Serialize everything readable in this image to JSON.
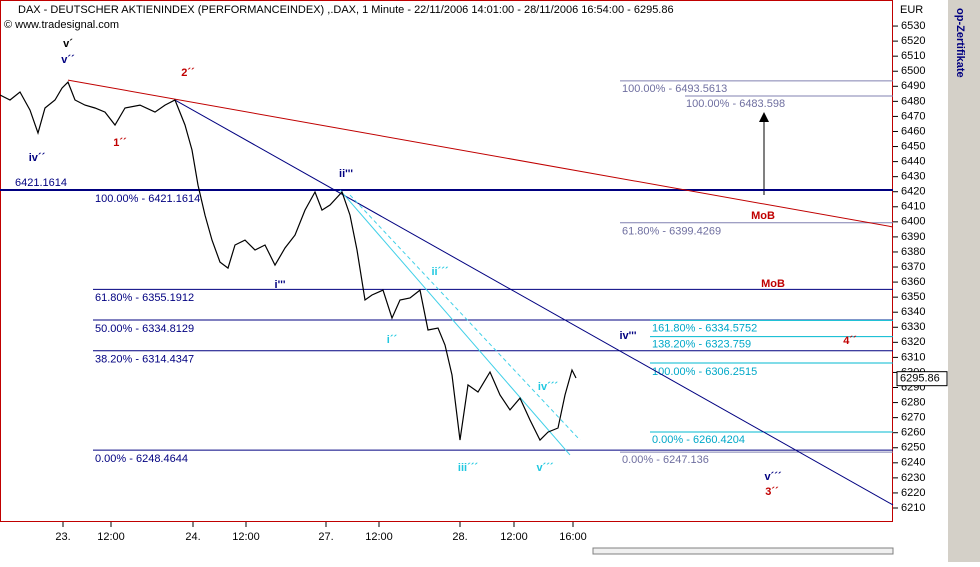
{
  "chart_data": {
    "type": "line",
    "title": "DAX - DEUTSCHER AKTIENINDEX (PERFORMANCEINDEX) ,.DAX, 1 Minute - 22/11/2006 14:01:00 - 28/11/2006 16:54:00 - 6295.86",
    "source": "© www.tradesignal.com",
    "currency": "EUR",
    "side_tab": "op-Zertifikate",
    "color": "#000000",
    "x": [
      -252,
      -212,
      -172,
      -132,
      -100,
      -72,
      -32,
      -4,
      20,
      48,
      88,
      128,
      168,
      208,
      248,
      308,
      368,
      408,
      448,
      488,
      516,
      540,
      568,
      596,
      628,
      660,
      688,
      728,
      768,
      808,
      848,
      888,
      928,
      968,
      1008,
      1036,
      1068,
      1116,
      1148,
      1176,
      1208,
      1236,
      1280,
      1316,
      1348,
      1388,
      1428,
      1460,
      1500,
      1528,
      1556,
      1588,
      1620,
      1660,
      1708,
      1748,
      1788,
      1828,
      1868,
      1908,
      1940,
      1980,
      2008,
      2036,
      2052
    ],
    "values": [
      6484.2,
      6480.9,
      6486.2,
      6474.2,
      6459,
      6475.6,
      6480.9,
      6488.8,
      6492.8,
      6480.9,
      6477.5,
      6475.6,
      6472.9,
      6464.3,
      6475.6,
      6477.5,
      6472.9,
      6477.5,
      6480.9,
      6464.3,
      6447.7,
      6424.4,
      6404.5,
      6387.9,
      6373.3,
      6369.3,
      6384.6,
      6387.9,
      6381.3,
      6384.6,
      6371.3,
      6382.6,
      6391.2,
      6407.8,
      6419.8,
      6407.8,
      6411.2,
      6419.8,
      6404.5,
      6381.3,
      6348.1,
      6351.4,
      6354.7,
      6336.1,
      6348.1,
      6349.4,
      6354.7,
      6328.2,
      6329.5,
      6318.2,
      6298.3,
      6255.1,
      6291.7,
      6287,
      6300.3,
      6285,
      6275.1,
      6283,
      6268.4,
      6255.1,
      6260.4,
      6263.1,
      6285,
      6301.6,
      6296.3
    ],
    "last_price": 6295.86,
    "xlim": [
      -252,
      3320
    ],
    "ylim": [
      6200.7,
      6547.3
    ],
    "xticks": [
      {
        "value": 0,
        "label": "23."
      },
      {
        "value": 192,
        "label": "12:00"
      },
      {
        "value": 520,
        "label": "24."
      },
      {
        "value": 732,
        "label": "12:00"
      },
      {
        "value": 1052,
        "label": "27."
      },
      {
        "value": 1264,
        "label": "12:00"
      },
      {
        "value": 1588,
        "label": "28."
      },
      {
        "value": 1804,
        "label": "12:00"
      },
      {
        "value": 2040,
        "label": "16:00"
      }
    ],
    "yticks": [
      6210,
      6220,
      6230,
      6240,
      6250,
      6260,
      6270,
      6280,
      6290,
      6300,
      6310,
      6320,
      6330,
      6340,
      6350,
      6360,
      6370,
      6380,
      6390,
      6400,
      6410,
      6420,
      6430,
      6440,
      6450,
      6460,
      6470,
      6480,
      6490,
      6500,
      6510,
      6520,
      6530
    ],
    "levels": [
      {
        "value": 6421.1614,
        "label": "100.00% - 6421.1614",
        "side_label": "6421.1614",
        "color": "#000080"
      },
      {
        "value": 6355.1912,
        "label": "61.80% - 6355.1912",
        "color": "#000080"
      },
      {
        "value": 6334.8129,
        "label": "50.00% - 6334.8129",
        "color": "#000080"
      },
      {
        "value": 6314.4347,
        "label": "38.20% - 6314.4347",
        "color": "#000080"
      },
      {
        "value": 6248.4644,
        "label": "0.00% - 6248.4644",
        "color": "#000080"
      },
      {
        "value": 6493.5613,
        "label": "100.00% - 6493.5613",
        "color": "#8080b0"
      },
      {
        "value": 6483.598,
        "label": "100.00% - 6483.598",
        "color": "#8080b0"
      },
      {
        "value": 6399.4269,
        "label": "61.80% - 6399.4269",
        "color": "#8080b0"
      },
      {
        "value": 6334.5752,
        "label": "161.80% - 6334.5752",
        "color": "#00b8d0"
      },
      {
        "value": 6323.759,
        "label": "138.20% - 6323.759",
        "color": "#00b8d0"
      },
      {
        "value": 6306.2515,
        "label": "100.00% - 6306.2515",
        "color": "#00b8d0"
      },
      {
        "value": 6260.4204,
        "label": "0.00% - 6260.4204",
        "color": "#00b8d0"
      },
      {
        "value": 6247.136,
        "label": "0.00% - 6247.136",
        "color": "#8080b0"
      }
    ],
    "trendlines": [
      {
        "x": [
          20,
          3320
        ],
        "y": [
          6494.1,
          6396.6
        ],
        "color": "#c00000"
      },
      {
        "x": [
          448,
          3320
        ],
        "y": [
          6480.9,
          6212.0
        ],
        "color": "#000080"
      },
      {
        "x": [
          1108,
          2028
        ],
        "y": [
          6421.1,
          6245.2
        ],
        "color": "#40d0e8"
      },
      {
        "x": [
          1148,
          2068
        ],
        "y": [
          6417.8,
          6255.1
        ],
        "color": "#40d0e8"
      }
    ],
    "annotations": [
      {
        "text": "v´",
        "color": "#000000"
      },
      {
        "text": "v´´",
        "color": "#000080"
      },
      {
        "text": "iv´´",
        "color": "#000080"
      },
      {
        "text": "2´´",
        "color": "#c00000"
      },
      {
        "text": "1´´",
        "color": "#c00000"
      },
      {
        "text": "ii'''",
        "color": "#000080"
      },
      {
        "text": "i'''",
        "color": "#000080"
      },
      {
        "text": "ii´´´",
        "color": "#20c8e0"
      },
      {
        "text": "i´´",
        "color": "#20c8e0"
      },
      {
        "text": "iii´´´",
        "color": "#20c8e0"
      },
      {
        "text": "v´´´",
        "color": "#20c8e0"
      },
      {
        "text": "iv´´´",
        "color": "#20c8e0"
      },
      {
        "text": "iv'''",
        "color": "#000080"
      },
      {
        "text": "MoB",
        "color": "#c00000"
      },
      {
        "text": "MoB",
        "color": "#c00000"
      },
      {
        "text": "4´´",
        "color": "#c00000"
      },
      {
        "text": "v´´´",
        "color": "#000080"
      },
      {
        "text": "3´´",
        "color": "#c00000"
      }
    ]
  }
}
